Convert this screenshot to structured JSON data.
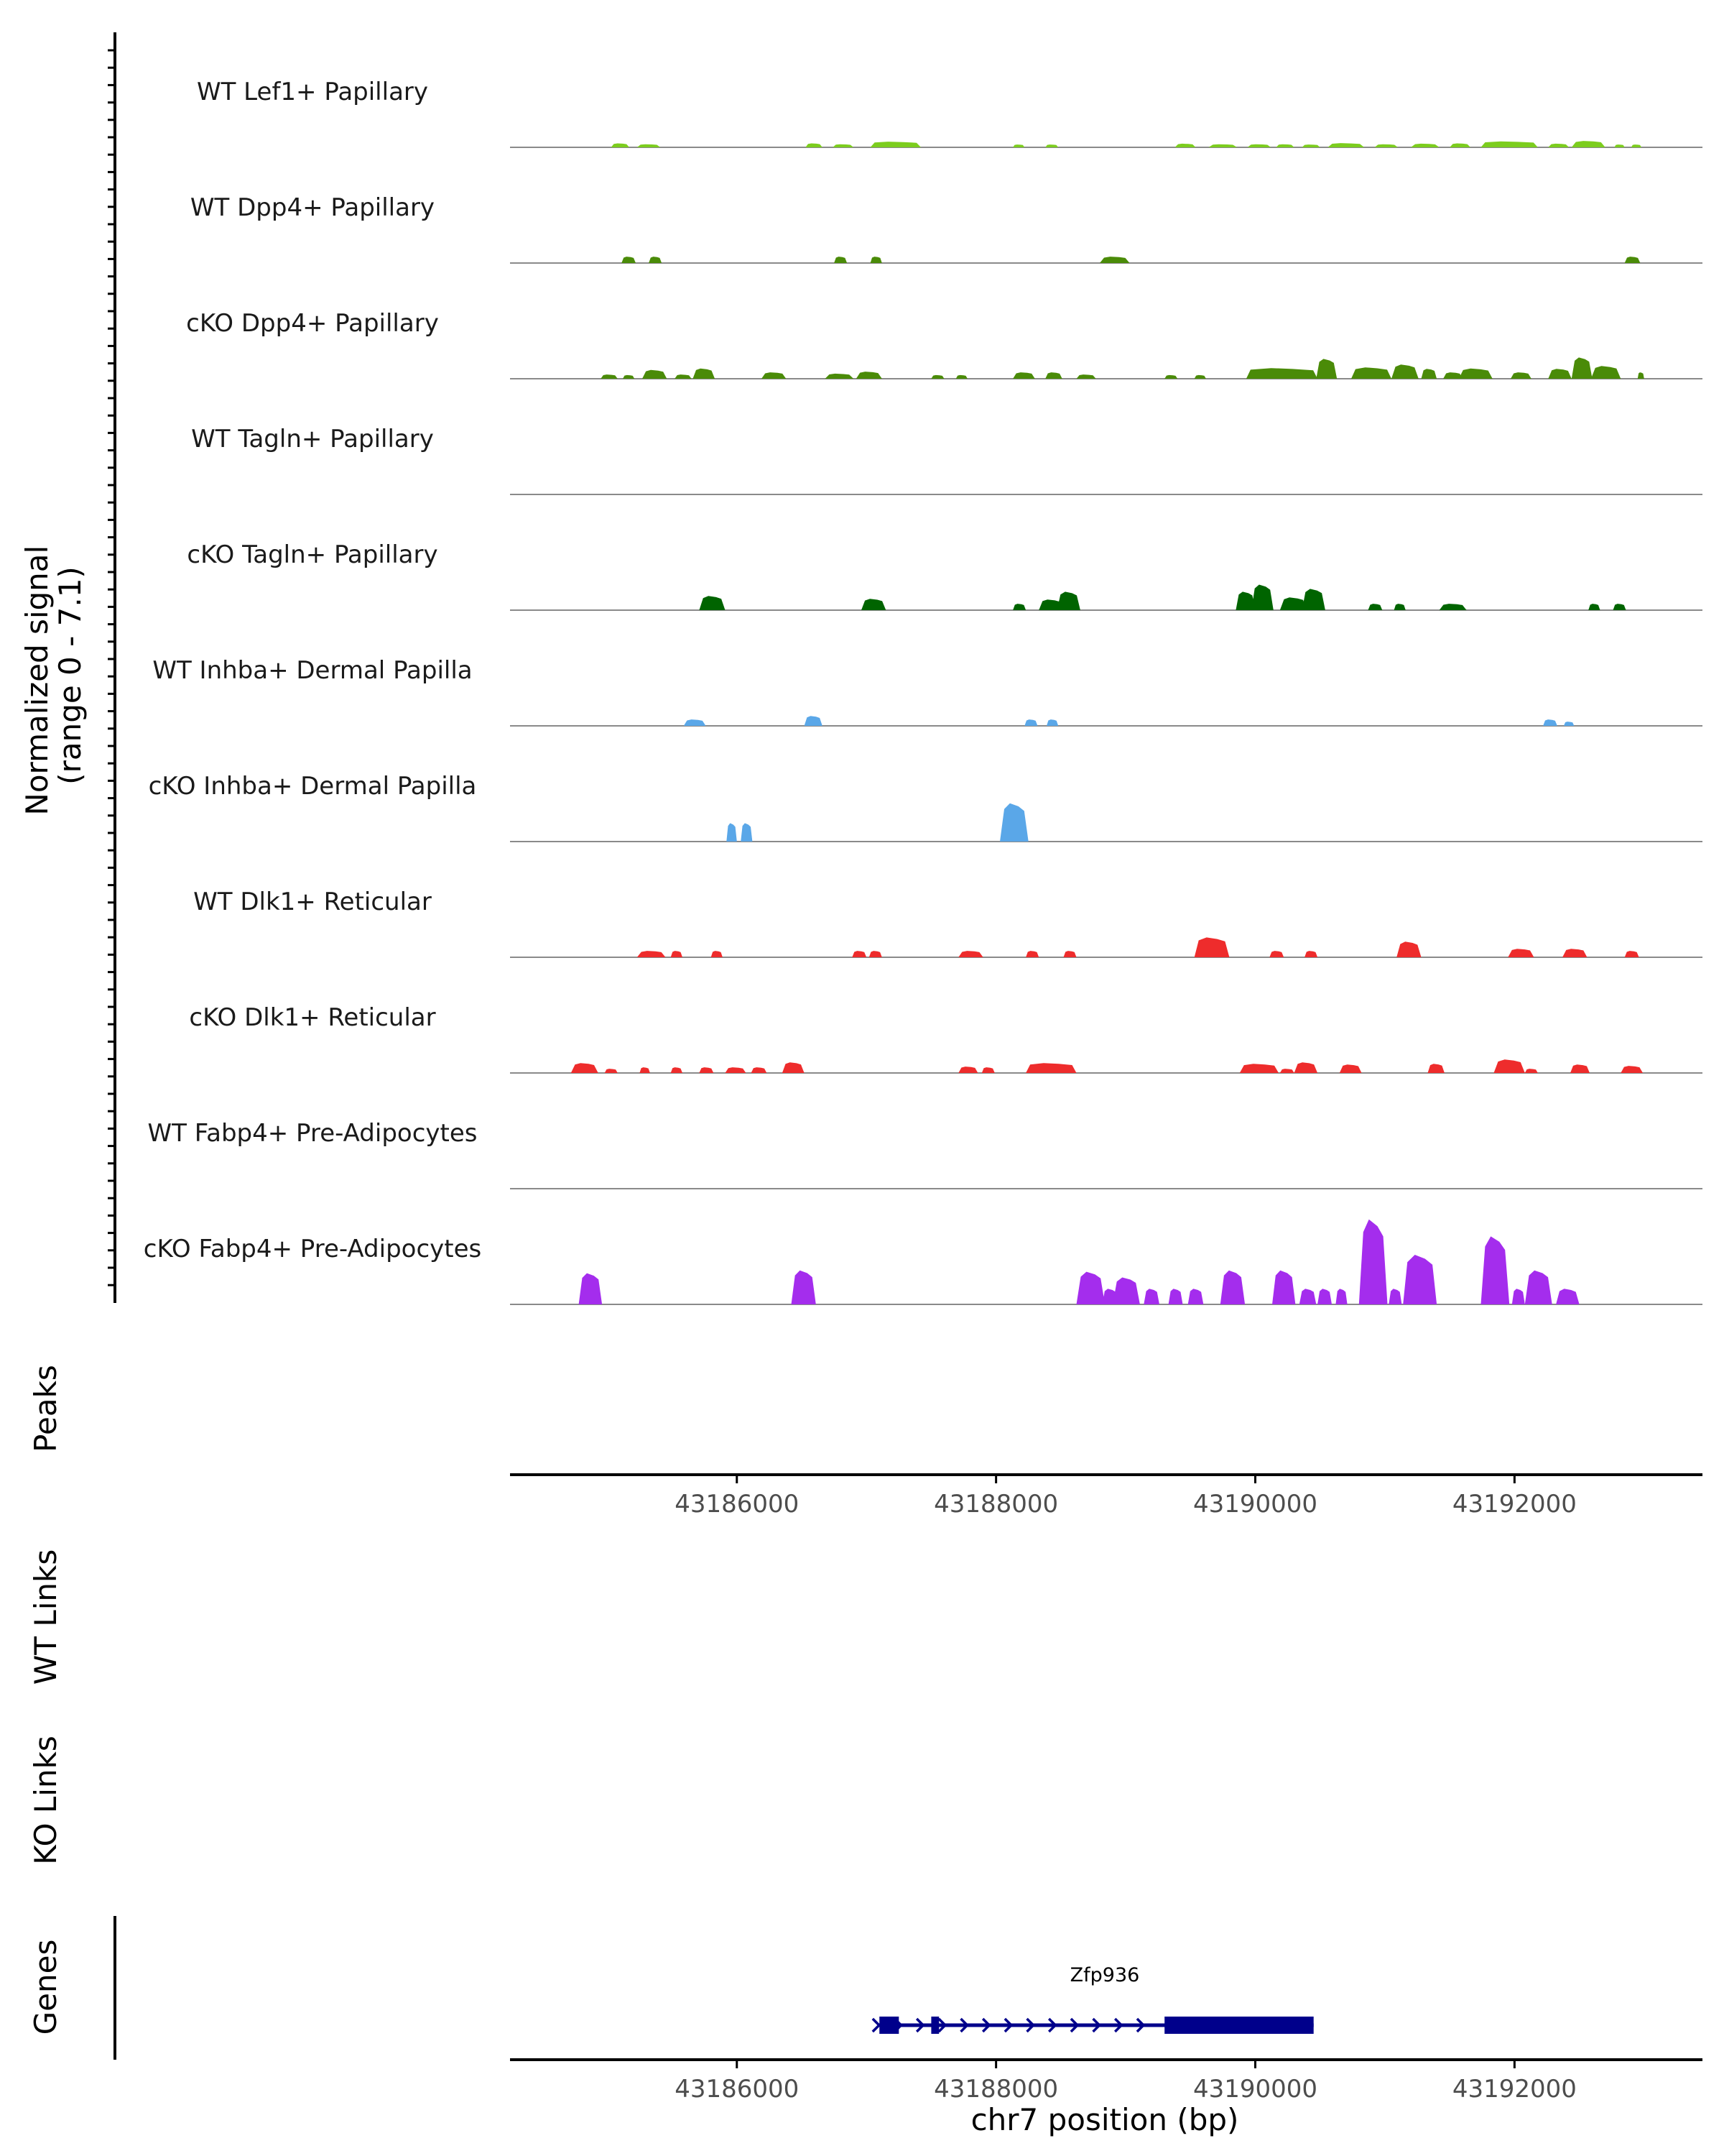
{
  "chart_data": {
    "type": "area",
    "title": "",
    "xlabel": "chr7 position (bp)",
    "ylabel": "Normalized signal\n(range 0 - 7.1)",
    "ylabel_lines": [
      "Normalized signal",
      "(range 0 - 7.1)"
    ],
    "ylim": [
      0,
      7.1
    ],
    "xlim": [
      43184250,
      43193450
    ],
    "x_ticks": [
      43186000,
      43188000,
      43190000,
      43192000
    ],
    "x_tick_labels": [
      "43186000",
      "43188000",
      "43190000",
      "43192000"
    ],
    "section_titles": {
      "peaks": "Peaks",
      "wt_links": "WT Links",
      "ko_links": "KO Links",
      "genes": "Genes"
    },
    "gene": {
      "name": "Zfp936",
      "strand": "+",
      "start": 43187100,
      "end": 43190450,
      "exons": [
        [
          43187100,
          43187250
        ],
        [
          43187500,
          43187560
        ],
        [
          43189300,
          43190450
        ]
      ],
      "color": "#00008b"
    },
    "series": [
      {
        "name": "WT Lef1+ Papillary",
        "color": "#7ccd1e",
        "intervals": [
          {
            "start": 43185030,
            "end": 43185170,
            "h": 0.28
          },
          {
            "start": 43185230,
            "end": 43185410,
            "h": 0.22
          },
          {
            "start": 43186530,
            "end": 43186660,
            "h": 0.28
          },
          {
            "start": 43186740,
            "end": 43186900,
            "h": 0.22
          },
          {
            "start": 43187030,
            "end": 43187420,
            "h": 0.4
          },
          {
            "start": 43188130,
            "end": 43188220,
            "h": 0.2
          },
          {
            "start": 43188380,
            "end": 43188480,
            "h": 0.2
          },
          {
            "start": 43189380,
            "end": 43189540,
            "h": 0.26
          },
          {
            "start": 43189640,
            "end": 43189860,
            "h": 0.22
          },
          {
            "start": 43189940,
            "end": 43190120,
            "h": 0.22
          },
          {
            "start": 43190160,
            "end": 43190300,
            "h": 0.22
          },
          {
            "start": 43190360,
            "end": 43190500,
            "h": 0.2
          },
          {
            "start": 43190560,
            "end": 43190840,
            "h": 0.3
          },
          {
            "start": 43190920,
            "end": 43191100,
            "h": 0.22
          },
          {
            "start": 43191200,
            "end": 43191420,
            "h": 0.26
          },
          {
            "start": 43191500,
            "end": 43191660,
            "h": 0.28
          },
          {
            "start": 43191740,
            "end": 43192180,
            "h": 0.42
          },
          {
            "start": 43192260,
            "end": 43192420,
            "h": 0.26
          },
          {
            "start": 43192440,
            "end": 43192700,
            "h": 0.45
          },
          {
            "start": 43192770,
            "end": 43192850,
            "h": 0.2
          },
          {
            "start": 43192900,
            "end": 43192980,
            "h": 0.2
          }
        ]
      },
      {
        "name": "WT Dpp4+ Papillary",
        "color": "#4a8b08",
        "intervals": [
          {
            "start": 43185110,
            "end": 43185220,
            "h": 0.45
          },
          {
            "start": 43185320,
            "end": 43185420,
            "h": 0.45
          },
          {
            "start": 43186750,
            "end": 43186850,
            "h": 0.45
          },
          {
            "start": 43187030,
            "end": 43187120,
            "h": 0.45
          },
          {
            "start": 43188800,
            "end": 43189030,
            "h": 0.45
          },
          {
            "start": 43192850,
            "end": 43192970,
            "h": 0.45
          }
        ]
      },
      {
        "name": "cKO Dpp4+ Papillary",
        "color": "#4a8b08",
        "intervals": [
          {
            "start": 43184950,
            "end": 43185080,
            "h": 0.3
          },
          {
            "start": 43185120,
            "end": 43185210,
            "h": 0.26
          },
          {
            "start": 43185270,
            "end": 43185460,
            "h": 0.62
          },
          {
            "start": 43185520,
            "end": 43185650,
            "h": 0.3
          },
          {
            "start": 43185660,
            "end": 43185830,
            "h": 0.72
          },
          {
            "start": 43186190,
            "end": 43186380,
            "h": 0.45
          },
          {
            "start": 43186680,
            "end": 43186900,
            "h": 0.36
          },
          {
            "start": 43186920,
            "end": 43187120,
            "h": 0.5
          },
          {
            "start": 43187500,
            "end": 43187600,
            "h": 0.26
          },
          {
            "start": 43187690,
            "end": 43187780,
            "h": 0.26
          },
          {
            "start": 43188130,
            "end": 43188300,
            "h": 0.45
          },
          {
            "start": 43188380,
            "end": 43188510,
            "h": 0.45
          },
          {
            "start": 43188620,
            "end": 43188770,
            "h": 0.3
          },
          {
            "start": 43189300,
            "end": 43189400,
            "h": 0.26
          },
          {
            "start": 43189530,
            "end": 43189620,
            "h": 0.26
          },
          {
            "start": 43189930,
            "end": 43190480,
            "h": 0.75
          },
          {
            "start": 43190470,
            "end": 43190630,
            "h": 1.4
          },
          {
            "start": 43190740,
            "end": 43191050,
            "h": 0.8
          },
          {
            "start": 43191050,
            "end": 43191260,
            "h": 1.0
          },
          {
            "start": 43191280,
            "end": 43191400,
            "h": 0.7
          },
          {
            "start": 43191450,
            "end": 43191600,
            "h": 0.45
          },
          {
            "start": 43191570,
            "end": 43191830,
            "h": 0.72
          },
          {
            "start": 43191970,
            "end": 43192130,
            "h": 0.45
          },
          {
            "start": 43192260,
            "end": 43192440,
            "h": 0.7
          },
          {
            "start": 43192440,
            "end": 43192600,
            "h": 1.5
          },
          {
            "start": 43192590,
            "end": 43192820,
            "h": 0.9
          },
          {
            "start": 43192950,
            "end": 43193000,
            "h": 0.45
          }
        ]
      },
      {
        "name": "WT Tagln+ Papillary",
        "color": "#006400",
        "intervals": []
      },
      {
        "name": "cKO Tagln+ Papillary",
        "color": "#006400",
        "intervals": [
          {
            "start": 43185710,
            "end": 43185910,
            "h": 1.0
          },
          {
            "start": 43186960,
            "end": 43187150,
            "h": 0.8
          },
          {
            "start": 43188130,
            "end": 43188230,
            "h": 0.45
          },
          {
            "start": 43188330,
            "end": 43188520,
            "h": 0.75
          },
          {
            "start": 43188470,
            "end": 43188650,
            "h": 1.3
          },
          {
            "start": 43189850,
            "end": 43190000,
            "h": 1.3
          },
          {
            "start": 43189970,
            "end": 43190140,
            "h": 1.8
          },
          {
            "start": 43190190,
            "end": 43190400,
            "h": 0.9
          },
          {
            "start": 43190360,
            "end": 43190540,
            "h": 1.5
          },
          {
            "start": 43190870,
            "end": 43190980,
            "h": 0.45
          },
          {
            "start": 43191070,
            "end": 43191160,
            "h": 0.45
          },
          {
            "start": 43191420,
            "end": 43191630,
            "h": 0.45
          },
          {
            "start": 43192570,
            "end": 43192660,
            "h": 0.45
          },
          {
            "start": 43192760,
            "end": 43192860,
            "h": 0.45
          }
        ]
      },
      {
        "name": "WT Inhba+ Dermal Papilla",
        "color": "#5aa7e8",
        "intervals": [
          {
            "start": 43185590,
            "end": 43185760,
            "h": 0.45
          },
          {
            "start": 43186520,
            "end": 43186660,
            "h": 0.7
          },
          {
            "start": 43188220,
            "end": 43188320,
            "h": 0.45
          },
          {
            "start": 43188390,
            "end": 43188480,
            "h": 0.45
          },
          {
            "start": 43192220,
            "end": 43192330,
            "h": 0.45
          },
          {
            "start": 43192380,
            "end": 43192460,
            "h": 0.3
          }
        ]
      },
      {
        "name": "cKO Inhba+ Dermal Papilla",
        "color": "#5aa7e8",
        "intervals": [
          {
            "start": 43185920,
            "end": 43186000,
            "h": 1.3
          },
          {
            "start": 43186030,
            "end": 43186120,
            "h": 1.3
          },
          {
            "start": 43188030,
            "end": 43188250,
            "h": 2.7
          }
        ]
      },
      {
        "name": "WT Dlk1+ Reticular",
        "color": "#ee2c2c",
        "intervals": [
          {
            "start": 43185230,
            "end": 43185450,
            "h": 0.45
          },
          {
            "start": 43185490,
            "end": 43185580,
            "h": 0.45
          },
          {
            "start": 43185800,
            "end": 43185890,
            "h": 0.45
          },
          {
            "start": 43186890,
            "end": 43187000,
            "h": 0.45
          },
          {
            "start": 43187020,
            "end": 43187120,
            "h": 0.45
          },
          {
            "start": 43187710,
            "end": 43187900,
            "h": 0.45
          },
          {
            "start": 43188230,
            "end": 43188330,
            "h": 0.45
          },
          {
            "start": 43188520,
            "end": 43188620,
            "h": 0.45
          },
          {
            "start": 43189530,
            "end": 43189800,
            "h": 1.4
          },
          {
            "start": 43190110,
            "end": 43190220,
            "h": 0.45
          },
          {
            "start": 43190380,
            "end": 43190480,
            "h": 0.45
          },
          {
            "start": 43191090,
            "end": 43191280,
            "h": 1.1
          },
          {
            "start": 43191950,
            "end": 43192150,
            "h": 0.6
          },
          {
            "start": 43192370,
            "end": 43192560,
            "h": 0.6
          },
          {
            "start": 43192850,
            "end": 43192960,
            "h": 0.45
          }
        ]
      },
      {
        "name": "cKO Dlk1+ Reticular",
        "color": "#ee2c2c",
        "intervals": [
          {
            "start": 43184720,
            "end": 43184930,
            "h": 0.7
          },
          {
            "start": 43184980,
            "end": 43185080,
            "h": 0.3
          },
          {
            "start": 43185250,
            "end": 43185330,
            "h": 0.4
          },
          {
            "start": 43185490,
            "end": 43185580,
            "h": 0.4
          },
          {
            "start": 43185710,
            "end": 43185820,
            "h": 0.4
          },
          {
            "start": 43185910,
            "end": 43186070,
            "h": 0.4
          },
          {
            "start": 43186110,
            "end": 43186230,
            "h": 0.4
          },
          {
            "start": 43186350,
            "end": 43186520,
            "h": 0.75
          },
          {
            "start": 43187710,
            "end": 43187860,
            "h": 0.45
          },
          {
            "start": 43187890,
            "end": 43187990,
            "h": 0.4
          },
          {
            "start": 43188230,
            "end": 43188620,
            "h": 0.7
          },
          {
            "start": 43189880,
            "end": 43190180,
            "h": 0.65
          },
          {
            "start": 43190190,
            "end": 43190300,
            "h": 0.3
          },
          {
            "start": 43190300,
            "end": 43190480,
            "h": 0.75
          },
          {
            "start": 43190650,
            "end": 43190820,
            "h": 0.6
          },
          {
            "start": 43191330,
            "end": 43191460,
            "h": 0.65
          },
          {
            "start": 43191840,
            "end": 43192080,
            "h": 0.95
          },
          {
            "start": 43192080,
            "end": 43192180,
            "h": 0.3
          },
          {
            "start": 43192430,
            "end": 43192580,
            "h": 0.6
          },
          {
            "start": 43192820,
            "end": 43192990,
            "h": 0.5
          }
        ]
      },
      {
        "name": "WT Fabp4+ Pre-Adipocytes",
        "color": "#a42ded",
        "intervals": []
      },
      {
        "name": "cKO Fabp4+ Pre-Adipocytes",
        "color": "#a42ded",
        "intervals": [
          {
            "start": 43184780,
            "end": 43184960,
            "h": 2.2
          },
          {
            "start": 43186420,
            "end": 43186610,
            "h": 2.4
          },
          {
            "start": 43188620,
            "end": 43188840,
            "h": 2.3
          },
          {
            "start": 43188820,
            "end": 43188940,
            "h": 1.1
          },
          {
            "start": 43188900,
            "end": 43189110,
            "h": 1.9
          },
          {
            "start": 43189140,
            "end": 43189260,
            "h": 1.1
          },
          {
            "start": 43189330,
            "end": 43189440,
            "h": 1.1
          },
          {
            "start": 43189480,
            "end": 43189600,
            "h": 1.1
          },
          {
            "start": 43189730,
            "end": 43189920,
            "h": 2.4
          },
          {
            "start": 43190130,
            "end": 43190310,
            "h": 2.4
          },
          {
            "start": 43190340,
            "end": 43190470,
            "h": 1.1
          },
          {
            "start": 43190480,
            "end": 43190590,
            "h": 1.1
          },
          {
            "start": 43190620,
            "end": 43190710,
            "h": 1.1
          },
          {
            "start": 43190800,
            "end": 43191020,
            "h": 6.0
          },
          {
            "start": 43191030,
            "end": 43191130,
            "h": 1.1
          },
          {
            "start": 43191140,
            "end": 43191400,
            "h": 3.5
          },
          {
            "start": 43191740,
            "end": 43191960,
            "h": 4.8
          },
          {
            "start": 43191980,
            "end": 43192080,
            "h": 1.1
          },
          {
            "start": 43192080,
            "end": 43192290,
            "h": 2.4
          },
          {
            "start": 43192320,
            "end": 43192500,
            "h": 1.1
          }
        ]
      }
    ]
  }
}
